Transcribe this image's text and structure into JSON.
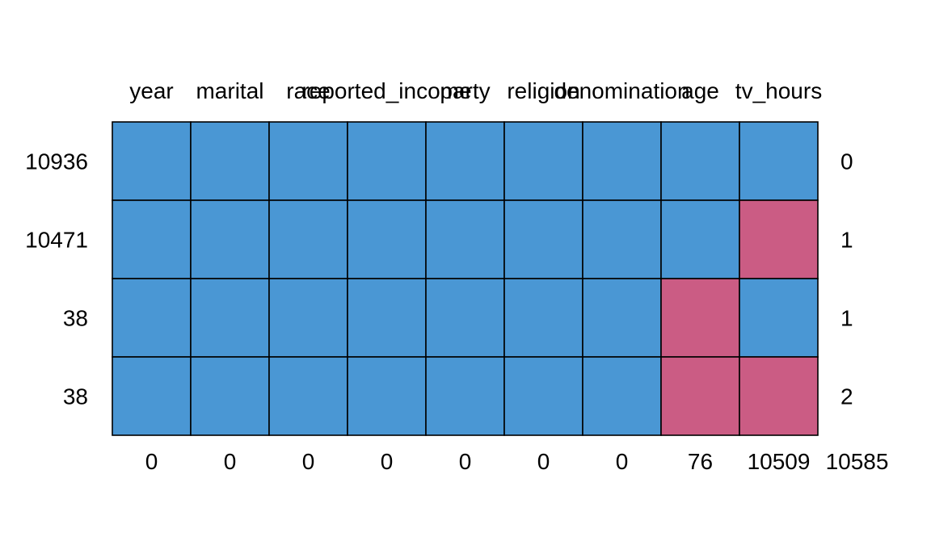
{
  "chart_data": {
    "type": "heatmap",
    "title": "",
    "variables": [
      "year",
      "marital",
      "race",
      "reported_income",
      "party",
      "religion",
      "denomination",
      "age",
      "tv_hours"
    ],
    "column_missing_counts": [
      "0",
      "0",
      "0",
      "0",
      "0",
      "0",
      "0",
      "76",
      "10509"
    ],
    "total_missing": "10585",
    "patterns": [
      {
        "count": "10936",
        "missing_vars": "0",
        "cells": [
          1,
          1,
          1,
          1,
          1,
          1,
          1,
          1,
          1
        ]
      },
      {
        "count": "10471",
        "missing_vars": "1",
        "cells": [
          1,
          1,
          1,
          1,
          1,
          1,
          1,
          1,
          0
        ]
      },
      {
        "count": "38",
        "missing_vars": "1",
        "cells": [
          1,
          1,
          1,
          1,
          1,
          1,
          1,
          0,
          1
        ]
      },
      {
        "count": "38",
        "missing_vars": "2",
        "cells": [
          1,
          1,
          1,
          1,
          1,
          1,
          1,
          0,
          0
        ]
      }
    ],
    "colors": {
      "observed": "#4A97D4",
      "missing": "#CB5C84",
      "border": "#000000"
    },
    "grid": true
  }
}
